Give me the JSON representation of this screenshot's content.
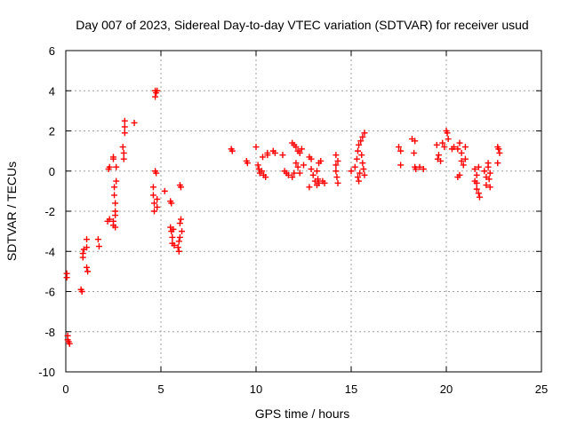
{
  "chart_data": {
    "type": "scatter",
    "title": "Day 007 of 2023, Sidereal Day-to-day VTEC variation (SDTVAR) for receiver usud",
    "xlabel": "GPS time / hours",
    "ylabel": "SDTVAR / TECUs",
    "xlim": [
      0,
      25
    ],
    "ylim": [
      -10,
      6
    ],
    "xticks": [
      0,
      5,
      10,
      15,
      20,
      25
    ],
    "yticks": [
      -10,
      -8,
      -6,
      -4,
      -2,
      0,
      2,
      4,
      6
    ],
    "xtick_labels": [
      "0",
      "5",
      "10",
      "15",
      "20",
      "25"
    ],
    "ytick_labels": [
      "-10",
      "-8",
      "-6",
      "-4",
      "-2",
      "0",
      "2",
      "4",
      "6"
    ],
    "grid": true,
    "marker": "plus",
    "series": [
      {
        "name": "SDTVAR",
        "color": "#ff0000",
        "points": [
          [
            0.05,
            -5.1
          ],
          [
            0.05,
            -5.3
          ],
          [
            0.1,
            -8.2
          ],
          [
            0.1,
            -8.4
          ],
          [
            0.15,
            -8.5
          ],
          [
            0.2,
            -8.6
          ],
          [
            0.8,
            -5.9
          ],
          [
            0.85,
            -6.0
          ],
          [
            0.9,
            -4.1
          ],
          [
            0.9,
            -4.3
          ],
          [
            0.95,
            -3.9
          ],
          [
            1.1,
            -3.4
          ],
          [
            1.1,
            -3.8
          ],
          [
            1.1,
            -4.8
          ],
          [
            1.15,
            -5.0
          ],
          [
            1.7,
            -3.4
          ],
          [
            1.75,
            -3.75
          ],
          [
            2.2,
            -2.5
          ],
          [
            2.3,
            -2.4
          ],
          [
            2.25,
            0.1
          ],
          [
            2.3,
            0.2
          ],
          [
            2.5,
            -2.5
          ],
          [
            2.5,
            -2.7
          ],
          [
            2.5,
            0.7
          ],
          [
            2.5,
            0.6
          ],
          [
            2.55,
            -0.8
          ],
          [
            2.55,
            -1.2
          ],
          [
            2.6,
            -1.6
          ],
          [
            2.6,
            -2.0
          ],
          [
            2.6,
            -2.2
          ],
          [
            2.6,
            -2.8
          ],
          [
            2.65,
            0.2
          ],
          [
            2.65,
            -0.5
          ],
          [
            3.0,
            1.2
          ],
          [
            3.05,
            0.9
          ],
          [
            3.05,
            0.6
          ],
          [
            3.1,
            2.5
          ],
          [
            3.1,
            2.2
          ],
          [
            3.1,
            1.9
          ],
          [
            3.6,
            2.4
          ],
          [
            4.6,
            -0.8
          ],
          [
            4.6,
            -1.2
          ],
          [
            4.65,
            -1.6
          ],
          [
            4.65,
            -2.0
          ],
          [
            4.7,
            4.0
          ],
          [
            4.75,
            3.9
          ],
          [
            4.7,
            3.7
          ],
          [
            4.8,
            4.0
          ],
          [
            4.7,
            0.0
          ],
          [
            4.75,
            -0.1
          ],
          [
            4.8,
            -1.8
          ],
          [
            4.8,
            -1.4
          ],
          [
            5.2,
            -1.0
          ],
          [
            5.5,
            -1.5
          ],
          [
            5.55,
            -1.6
          ],
          [
            5.5,
            -2.8
          ],
          [
            5.55,
            -3.0
          ],
          [
            5.6,
            -3.3
          ],
          [
            5.6,
            -3.6
          ],
          [
            5.65,
            -2.9
          ],
          [
            5.7,
            -3.7
          ],
          [
            5.9,
            -3.8
          ],
          [
            5.95,
            -3.5
          ],
          [
            6.0,
            -3.3
          ],
          [
            6.0,
            -2.6
          ],
          [
            6.05,
            -2.4
          ],
          [
            6.1,
            -3.0
          ],
          [
            6.0,
            -0.7
          ],
          [
            6.05,
            -0.8
          ],
          [
            5.95,
            -4.0
          ],
          [
            8.7,
            1.1
          ],
          [
            8.75,
            1.0
          ],
          [
            9.5,
            0.5
          ],
          [
            9.55,
            0.4
          ],
          [
            10.0,
            1.2
          ],
          [
            10.1,
            0.3
          ],
          [
            10.15,
            0.1
          ],
          [
            10.2,
            -0.1
          ],
          [
            10.3,
            0.0
          ],
          [
            10.35,
            0.7
          ],
          [
            10.4,
            -0.2
          ],
          [
            10.5,
            -0.3
          ],
          [
            10.6,
            0.9
          ],
          [
            10.6,
            0.8
          ],
          [
            10.9,
            1.0
          ],
          [
            11.0,
            0.9
          ],
          [
            11.4,
            0.8
          ],
          [
            11.5,
            0.0
          ],
          [
            11.6,
            -0.1
          ],
          [
            11.7,
            -0.2
          ],
          [
            11.9,
            1.4
          ],
          [
            12.0,
            1.3
          ],
          [
            12.1,
            1.2
          ],
          [
            12.2,
            1.0
          ],
          [
            12.3,
            0.9
          ],
          [
            12.4,
            1.1
          ],
          [
            12.1,
            0.4
          ],
          [
            12.2,
            0.2
          ],
          [
            12.0,
            -0.1
          ],
          [
            11.9,
            -0.3
          ],
          [
            12.3,
            -0.1
          ],
          [
            12.5,
            0.3
          ],
          [
            12.8,
            0.7
          ],
          [
            12.9,
            0.6
          ],
          [
            12.9,
            0.1
          ],
          [
            13.0,
            -0.2
          ],
          [
            13.1,
            -0.5
          ],
          [
            12.8,
            -0.8
          ],
          [
            13.3,
            0.4
          ],
          [
            13.2,
            0.0
          ],
          [
            13.25,
            -0.4
          ],
          [
            13.3,
            -0.6
          ],
          [
            13.4,
            0.5
          ],
          [
            13.5,
            -0.5
          ],
          [
            13.6,
            -0.6
          ],
          [
            13.2,
            -0.7
          ],
          [
            14.2,
            0.8
          ],
          [
            14.2,
            0.3
          ],
          [
            14.3,
            0.5
          ],
          [
            14.25,
            -0.3
          ],
          [
            14.3,
            -0.6
          ],
          [
            14.2,
            0.0
          ],
          [
            15.0,
            0.0
          ],
          [
            15.2,
            0.2
          ],
          [
            15.3,
            0.6
          ],
          [
            15.35,
            1.0
          ],
          [
            15.4,
            1.3
          ],
          [
            15.35,
            -0.3
          ],
          [
            15.4,
            -0.5
          ],
          [
            15.45,
            -0.1
          ],
          [
            15.5,
            1.5
          ],
          [
            15.6,
            1.7
          ],
          [
            15.7,
            1.9
          ],
          [
            15.6,
            0.4
          ],
          [
            15.65,
            0.1
          ],
          [
            15.7,
            -0.2
          ],
          [
            15.55,
            0.8
          ],
          [
            17.5,
            1.2
          ],
          [
            17.6,
            1.0
          ],
          [
            17.6,
            0.3
          ],
          [
            18.2,
            1.6
          ],
          [
            18.35,
            1.5
          ],
          [
            18.3,
            0.9
          ],
          [
            18.35,
            0.2
          ],
          [
            18.4,
            0.1
          ],
          [
            18.6,
            0.2
          ],
          [
            18.8,
            0.1
          ],
          [
            19.5,
            1.3
          ],
          [
            19.6,
            0.8
          ],
          [
            19.55,
            0.6
          ],
          [
            19.7,
            0.5
          ],
          [
            19.8,
            1.4
          ],
          [
            19.9,
            1.2
          ],
          [
            20.0,
            2.0
          ],
          [
            20.05,
            1.9
          ],
          [
            20.1,
            1.6
          ],
          [
            20.3,
            1.1
          ],
          [
            20.4,
            1.2
          ],
          [
            20.6,
            1.1
          ],
          [
            20.7,
            1.4
          ],
          [
            20.8,
            0.9
          ],
          [
            20.8,
            0.5
          ],
          [
            20.9,
            0.3
          ],
          [
            20.6,
            -0.3
          ],
          [
            20.7,
            -0.2
          ],
          [
            21.0,
            1.2
          ],
          [
            21.0,
            0.6
          ],
          [
            21.5,
            0.1
          ],
          [
            21.6,
            -0.2
          ],
          [
            21.5,
            -0.5
          ],
          [
            21.6,
            -0.9
          ],
          [
            21.7,
            -1.1
          ],
          [
            21.75,
            -1.3
          ],
          [
            21.7,
            0.2
          ],
          [
            21.6,
            -0.6
          ],
          [
            22.0,
            0.0
          ],
          [
            22.1,
            -0.3
          ],
          [
            22.1,
            -0.7
          ],
          [
            22.2,
            0.2
          ],
          [
            22.25,
            -0.4
          ],
          [
            22.3,
            -0.1
          ],
          [
            22.2,
            0.4
          ],
          [
            22.3,
            -0.8
          ],
          [
            22.7,
            1.2
          ],
          [
            22.75,
            1.1
          ],
          [
            22.8,
            0.9
          ],
          [
            22.7,
            0.4
          ]
        ]
      }
    ]
  }
}
